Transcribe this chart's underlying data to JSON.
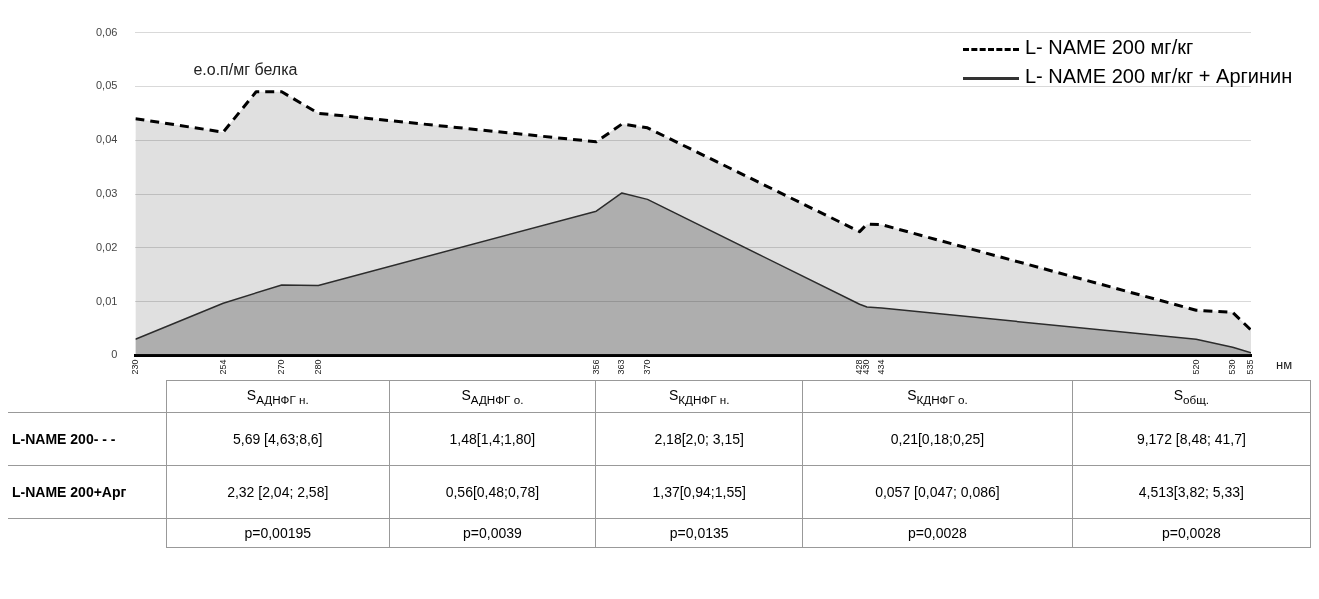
{
  "chart_data": {
    "type": "area",
    "ylabel": "е.о.п/мг белка",
    "xlabel": "нм",
    "xlim": [
      230,
      535
    ],
    "xticks": [
      230,
      254,
      270,
      280,
      356,
      363,
      370,
      428,
      430,
      434,
      520,
      530,
      535
    ],
    "ylim": [
      0,
      0.06
    ],
    "yticks": [
      0,
      {
        "value": 0.01,
        "label": "0,01"
      },
      {
        "value": 0.02,
        "label": "0,02"
      },
      {
        "value": 0.03,
        "label": "0,03"
      },
      {
        "value": 0.04,
        "label": "0,04"
      },
      {
        "value": 0.05,
        "label": "0,05"
      },
      {
        "value": 0.06,
        "label": "0,06"
      }
    ],
    "grid": "y",
    "legend": "top right",
    "marker": "none",
    "series": [
      {
        "name": "L- NAME 200 мг/кг",
        "color": "#000000",
        "line_style": "dashed",
        "x": [
          230,
          254,
          263,
          270,
          280,
          356,
          363,
          370,
          428,
          430,
          434,
          520,
          530,
          535
        ],
        "values": [
          0.044,
          0.0415,
          0.049,
          0.049,
          0.045,
          0.0397,
          0.043,
          0.0423,
          0.023,
          0.0244,
          0.0243,
          0.0084,
          0.008,
          0.0047
        ]
      },
      {
        "name": "L- NAME 200 мг/кг + Аргинин",
        "color": "#333333",
        "line_style": "solid",
        "x": [
          230,
          254,
          270,
          280,
          356,
          363,
          370,
          428,
          430,
          434,
          520,
          530,
          535
        ],
        "values": [
          0.003,
          0.0097,
          0.0131,
          0.013,
          0.0268,
          0.0302,
          0.029,
          0.0095,
          0.009,
          0.0088,
          0.003,
          0.0015,
          0.0005
        ]
      }
    ],
    "annotations": [
      "S$_{АДНФГ н.}$",
      "S$_{АДНФГ о.}$",
      "S$_{КДНФГ н.}$",
      "S$_{КДНФГ о.}$",
      "S$_{общ.}$",
      "L-NAME 200- - -",
      "5,69 [4,63;8,6]",
      "1,48[1,4;1,80]",
      "2,18[2,0; 3,15]",
      "0,21[0,18;0,25]",
      "9,172 [8,48; 41,7]",
      "L-NAME 200+Арг",
      "2,32 [2,04; 2,58]",
      "0,56[0,48;0,78]",
      "1,37[0,94;1,55]",
      "0,057 [0,047; 0,086]",
      "4,513[3,82; 5,33]",
      "p=0,00195",
      "p=0,0039",
      "p=0,0135",
      "p=0,0028",
      "p=0,0028"
    ]
  }
}
